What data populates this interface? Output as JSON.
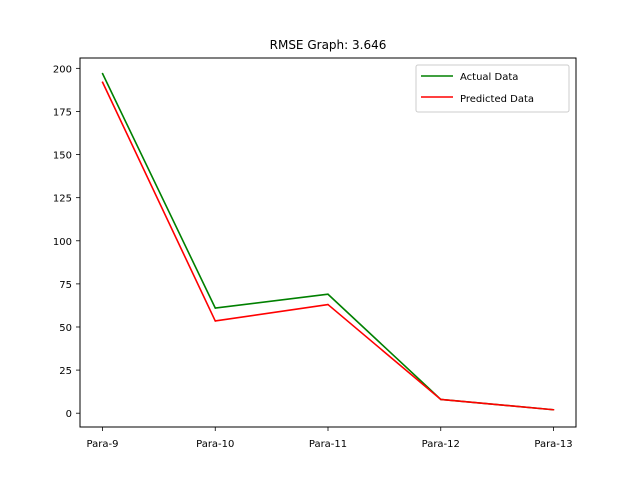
{
  "chart_data": {
    "type": "line",
    "title": "RMSE Graph: 3.646",
    "xlabel": "",
    "ylabel": "",
    "categories": [
      "Para-9",
      "Para-10",
      "Para-11",
      "Para-12",
      "Para-13"
    ],
    "ylim": [
      -8,
      206
    ],
    "yticks": [
      0,
      25,
      50,
      75,
      100,
      125,
      150,
      175,
      200
    ],
    "grid": false,
    "legend_position": "top-right",
    "series": [
      {
        "name": "Actual Data",
        "color": "#008000",
        "values": [
          197,
          61,
          69,
          8,
          2
        ]
      },
      {
        "name": "Predicted Data",
        "color": "#ff0000",
        "values": [
          192,
          53.5,
          63,
          8,
          2
        ]
      }
    ]
  }
}
